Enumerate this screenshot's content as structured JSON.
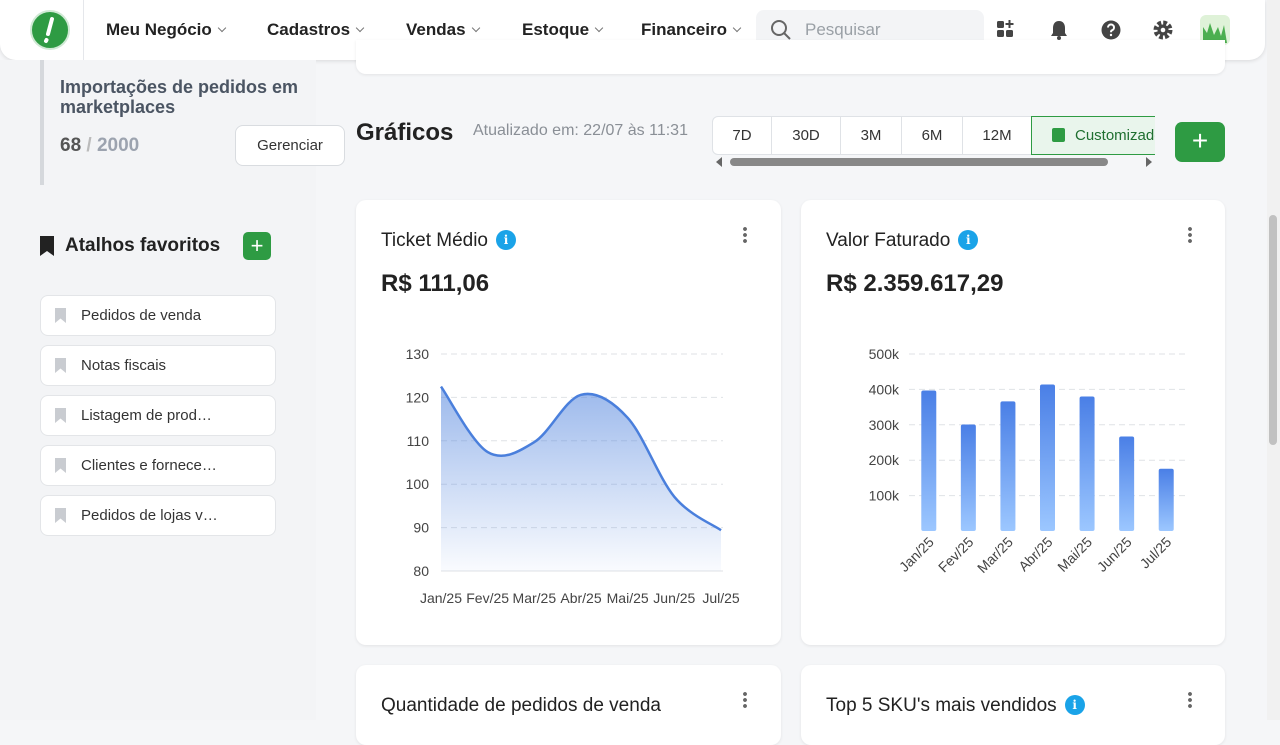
{
  "nav": {
    "items": [
      "Meu Negócio",
      "Cadastros",
      "Vendas",
      "Estoque",
      "Financeiro"
    ],
    "search_placeholder": "Pesquisar"
  },
  "sidebar": {
    "import_card": {
      "title": "Importações de pedidos em marketplaces",
      "count": "68",
      "separator": "/",
      "total": "2000",
      "button": "Gerenciar"
    },
    "favorites": {
      "title": "Atalhos favoritos",
      "items": [
        "Pedidos de venda",
        "Notas fiscais",
        "Listagem de prod…",
        "Clientes e fornece…",
        "Pedidos de lojas v…"
      ]
    }
  },
  "main": {
    "title": "Gráficos",
    "updated": "Atualizado em: 22/07 às 11:31",
    "periods": [
      "7D",
      "30D",
      "3M",
      "6M",
      "12M",
      "Customizado"
    ],
    "cards": [
      {
        "title": "Ticket Médio",
        "value": "R$ 111,06"
      },
      {
        "title": "Valor Faturado",
        "value": "R$ 2.359.617,29"
      },
      {
        "title": "Quantidade de pedidos de venda"
      },
      {
        "title": "Top 5 SKU's mais vendidos"
      }
    ]
  },
  "chart_data": [
    {
      "type": "line",
      "color": "#4a7fdc",
      "categories": [
        "Jan/25",
        "Fev/25",
        "Mar/25",
        "Abr/25",
        "Mai/25",
        "Jun/25",
        "Jul/25"
      ],
      "values": [
        122.5,
        107.4,
        109.7,
        120.6,
        115.3,
        97.1,
        89.4
      ],
      "ylim": [
        80,
        130
      ],
      "yticks": [
        80,
        90,
        100,
        110,
        120,
        130
      ],
      "grid": true
    },
    {
      "type": "bar",
      "color": "#4a7fe6",
      "categories": [
        "Jan/25",
        "Fev/25",
        "Mar/25",
        "Abr/25",
        "Mai/25",
        "Jun/25",
        "Jul/25"
      ],
      "values": [
        397000,
        301000,
        366000,
        414000,
        380000,
        267000,
        176000
      ],
      "ylim": [
        0,
        500000
      ],
      "yticks": [
        {
          "value": 100000,
          "label": "100k"
        },
        {
          "value": 200000,
          "label": "200k"
        },
        {
          "value": 300000,
          "label": "300k"
        },
        {
          "value": 400000,
          "label": "400k"
        },
        {
          "value": 500000,
          "label": "500k"
        }
      ],
      "grid": true
    }
  ]
}
